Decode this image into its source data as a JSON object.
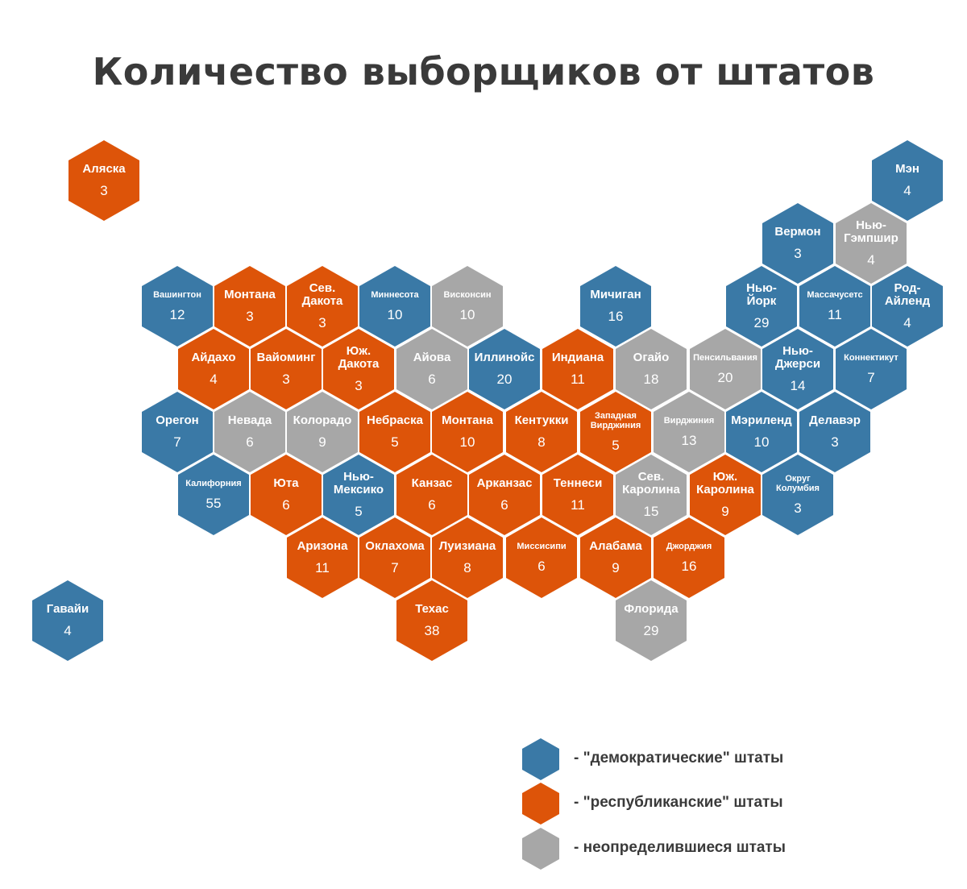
{
  "title": "Количество выборщиков от штатов",
  "colors": {
    "dem": "#3a79a6",
    "rep": "#dd5409",
    "und": "#a7a7a7"
  },
  "states": [
    {
      "name": "Аляска",
      "votes": "3",
      "party": "rep"
    },
    {
      "name": "Мэн",
      "votes": "4",
      "party": "dem"
    },
    {
      "name": "Вермон",
      "votes": "3",
      "party": "dem"
    },
    {
      "name": "Нью-\nГэмпшир",
      "votes": "4",
      "party": "und"
    },
    {
      "name": "Вашингтон",
      "votes": "12",
      "party": "dem"
    },
    {
      "name": "Монтана",
      "votes": "3",
      "party": "rep"
    },
    {
      "name": "Сев.\nДакота",
      "votes": "3",
      "party": "rep"
    },
    {
      "name": "Миннесота",
      "votes": "10",
      "party": "dem"
    },
    {
      "name": "Висконсин",
      "votes": "10",
      "party": "und"
    },
    {
      "name": "Мичиган",
      "votes": "16",
      "party": "dem"
    },
    {
      "name": "Нью-\nЙорк",
      "votes": "29",
      "party": "dem"
    },
    {
      "name": "Массачусетс",
      "votes": "11",
      "party": "dem"
    },
    {
      "name": "Род-\nАйленд",
      "votes": "4",
      "party": "dem"
    },
    {
      "name": "Айдахо",
      "votes": "4",
      "party": "rep"
    },
    {
      "name": "Вайоминг",
      "votes": "3",
      "party": "rep"
    },
    {
      "name": "Юж.\nДакота",
      "votes": "3",
      "party": "rep"
    },
    {
      "name": "Айова",
      "votes": "6",
      "party": "und"
    },
    {
      "name": "Иллинойс",
      "votes": "20",
      "party": "dem"
    },
    {
      "name": "Индиана",
      "votes": "11",
      "party": "rep"
    },
    {
      "name": "Огайо",
      "votes": "18",
      "party": "und"
    },
    {
      "name": "Пенсильвания",
      "votes": "20",
      "party": "und"
    },
    {
      "name": "Нью-\nДжерси",
      "votes": "14",
      "party": "dem"
    },
    {
      "name": "Коннектикут",
      "votes": "7",
      "party": "dem"
    },
    {
      "name": "Орегон",
      "votes": "7",
      "party": "dem"
    },
    {
      "name": "Невада",
      "votes": "6",
      "party": "und"
    },
    {
      "name": "Колорадо",
      "votes": "9",
      "party": "und"
    },
    {
      "name": "Небраска",
      "votes": "5",
      "party": "rep"
    },
    {
      "name": "Монтана",
      "votes": "10",
      "party": "rep"
    },
    {
      "name": "Кентукки",
      "votes": "8",
      "party": "rep"
    },
    {
      "name": "Западная\nВирджиния",
      "votes": "5",
      "party": "rep"
    },
    {
      "name": "Вирджиния",
      "votes": "13",
      "party": "und"
    },
    {
      "name": "Мэриленд",
      "votes": "10",
      "party": "dem"
    },
    {
      "name": "Делавэр",
      "votes": "3",
      "party": "dem"
    },
    {
      "name": "Калифорния",
      "votes": "55",
      "party": "dem"
    },
    {
      "name": "Юта",
      "votes": "6",
      "party": "rep"
    },
    {
      "name": "Нью-\nМексико",
      "votes": "5",
      "party": "dem"
    },
    {
      "name": "Канзас",
      "votes": "6",
      "party": "rep"
    },
    {
      "name": "Арканзас",
      "votes": "6",
      "party": "rep"
    },
    {
      "name": "Теннеси",
      "votes": "11",
      "party": "rep"
    },
    {
      "name": "Сев.\nКаролина",
      "votes": "15",
      "party": "und"
    },
    {
      "name": "Юж.\nКаролина",
      "votes": "9",
      "party": "rep"
    },
    {
      "name": "Округ\nКолумбия",
      "votes": "3",
      "party": "dem"
    },
    {
      "name": "Аризона",
      "votes": "11",
      "party": "rep"
    },
    {
      "name": "Оклахома",
      "votes": "7",
      "party": "rep"
    },
    {
      "name": "Луизиана",
      "votes": "8",
      "party": "rep"
    },
    {
      "name": "Миссисипи",
      "votes": "6",
      "party": "rep"
    },
    {
      "name": "Алабама",
      "votes": "9",
      "party": "rep"
    },
    {
      "name": "Джорджия",
      "votes": "16",
      "party": "rep"
    },
    {
      "name": "Гавайи",
      "votes": "4",
      "party": "dem"
    },
    {
      "name": "Техас",
      "votes": "38",
      "party": "rep"
    },
    {
      "name": "Флорида",
      "votes": "29",
      "party": "und"
    }
  ],
  "legend": [
    {
      "label": "- \"демократические\" штаты",
      "party": "dem"
    },
    {
      "label": "- \"республиканские\" штаты",
      "party": "rep"
    },
    {
      "label": "- неопределившиеся штаты",
      "party": "und"
    }
  ]
}
